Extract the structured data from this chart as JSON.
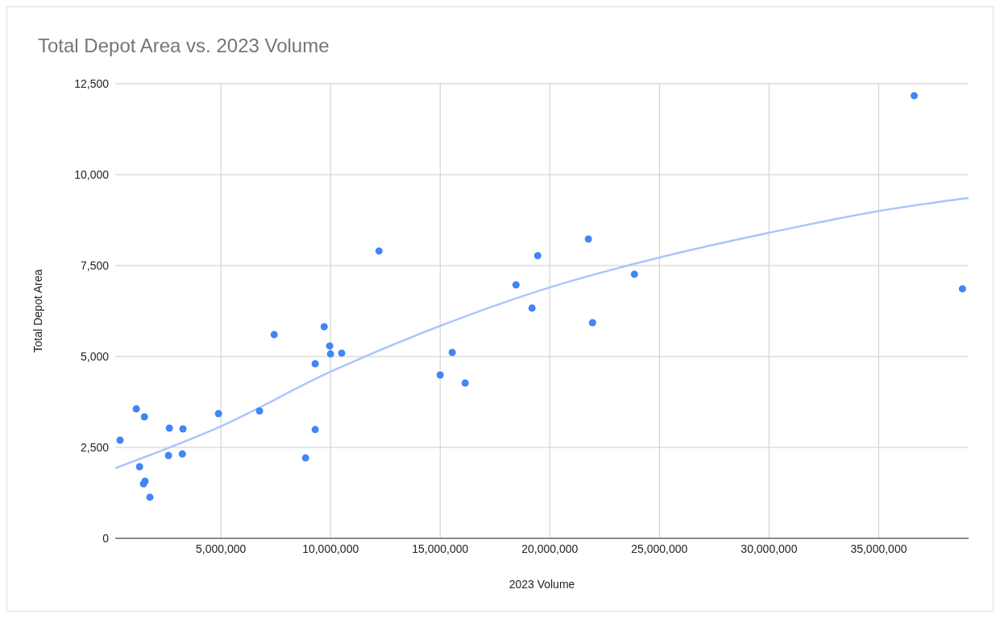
{
  "chart_data": {
    "type": "scatter",
    "title": "Total Depot Area vs. 2023 Volume",
    "xlabel": "2023 Volume",
    "ylabel": "Total Depot Area",
    "xlim": [
      180000,
      39100000
    ],
    "xticks": [
      {
        "value": 5000000,
        "label": "5,000,000"
      },
      {
        "value": 10000000,
        "label": "10,000,000"
      },
      {
        "value": 15000000,
        "label": "15,000,000"
      },
      {
        "value": 20000000,
        "label": "20,000,000"
      },
      {
        "value": 25000000,
        "label": "25,000,000"
      },
      {
        "value": 30000000,
        "label": "30,000,000"
      },
      {
        "value": 35000000,
        "label": "35,000,000"
      }
    ],
    "ylim": [
      0,
      12500
    ],
    "yticks": [
      0,
      {
        "value": 2500,
        "label": "2,500"
      },
      {
        "value": 5000,
        "label": "5,000"
      },
      {
        "value": 7500,
        "label": "7,500"
      },
      {
        "value": 10000,
        "label": "10,000"
      },
      {
        "value": 12500,
        "label": "12,500"
      }
    ],
    "grid": true,
    "marker": "circle",
    "series": [
      {
        "type": "scatter",
        "color": "#4285f4",
        "x": [
          400000,
          1140000,
          1510000,
          1290000,
          1470000,
          1540000,
          1760000,
          2650000,
          2610000,
          3270000,
          3240000,
          4890000,
          6760000,
          7430000,
          8860000,
          9300000,
          9300000,
          9710000,
          9960000,
          10000000,
          10510000,
          12210000,
          15000000,
          15550000,
          16140000,
          18460000,
          19190000,
          19450000,
          21760000,
          21950000,
          23860000,
          36620000,
          38820000
        ],
        "values": [
          2700,
          3560,
          3340,
          1970,
          1500,
          1570,
          1130,
          3030,
          2280,
          3010,
          2320,
          3430,
          3500,
          5600,
          2210,
          2990,
          4800,
          5820,
          5290,
          5070,
          5090,
          7900,
          4490,
          5110,
          4270,
          6970,
          6330,
          7770,
          8230,
          5930,
          7260,
          12170,
          6860
        ]
      },
      {
        "type": "line",
        "color": "#a8c7fa",
        "marker": "none",
        "line_style": "solid",
        "x": [
          180000,
          5000000,
          10000000,
          15000000,
          20000000,
          25000000,
          30000000,
          35000000,
          39100000
        ],
        "values": [
          1930,
          3080,
          4580,
          5840,
          6900,
          7720,
          8400,
          9000,
          9360
        ]
      }
    ]
  }
}
